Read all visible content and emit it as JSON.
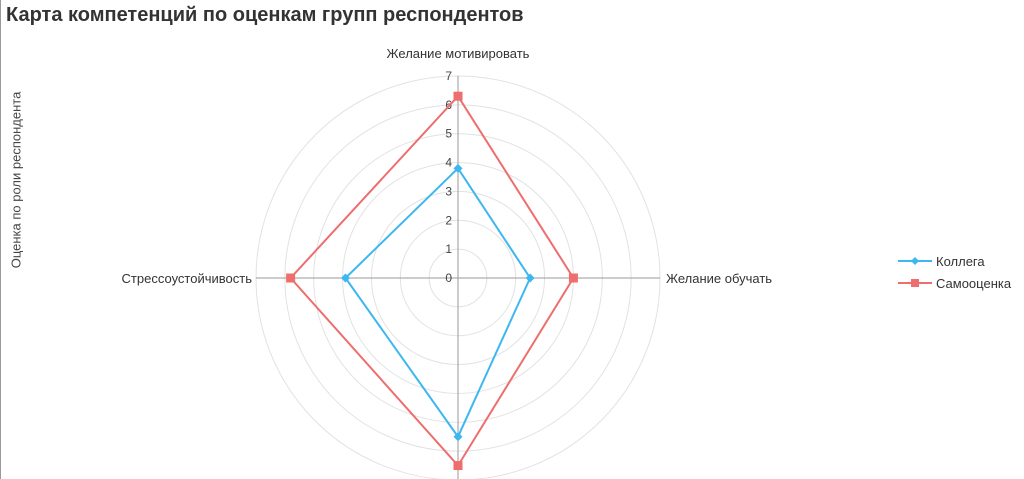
{
  "title": "Карта компетенций по оценкам групп респондентов",
  "chart_data": {
    "type": "radar",
    "title": "Карта компетенций по оценкам групп респондентов",
    "ylabel": "Оценка по роли респондента",
    "axes": [
      "Желание мотивировать",
      "Желание обучать",
      "",
      "Стрессоустойчивость"
    ],
    "rlim": [
      0,
      7
    ],
    "rticks": [
      "0",
      "1",
      "2",
      "3",
      "4",
      "5",
      "6",
      "7"
    ],
    "grid": true,
    "legend_position": "right",
    "series": [
      {
        "name": "Коллега",
        "values": [
          3.8,
          2.5,
          5.5,
          3.9
        ],
        "color": "#3db7f0",
        "marker": "diamond"
      },
      {
        "name": "Самооценка",
        "values": [
          6.3,
          4.0,
          6.5,
          5.8
        ],
        "color": "#ee6e6e",
        "marker": "square"
      }
    ]
  }
}
